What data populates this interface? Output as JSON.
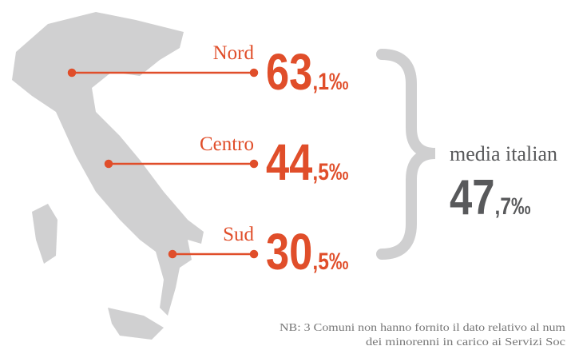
{
  "regions": [
    {
      "label": "Nord",
      "integer": "63",
      "decimal": ",1‰"
    },
    {
      "label": "Centro",
      "integer": "44",
      "decimal": ",5‰"
    },
    {
      "label": "Sud",
      "integer": "30",
      "decimal": ",5‰"
    }
  ],
  "average": {
    "label": "media italian",
    "integer": "47",
    "decimal": ",7‰"
  },
  "note": [
    "NB: 3 Comuni non hanno fornito il dato relativo al num",
    "dei minorenni in carico ai Servizi Soc"
  ]
}
